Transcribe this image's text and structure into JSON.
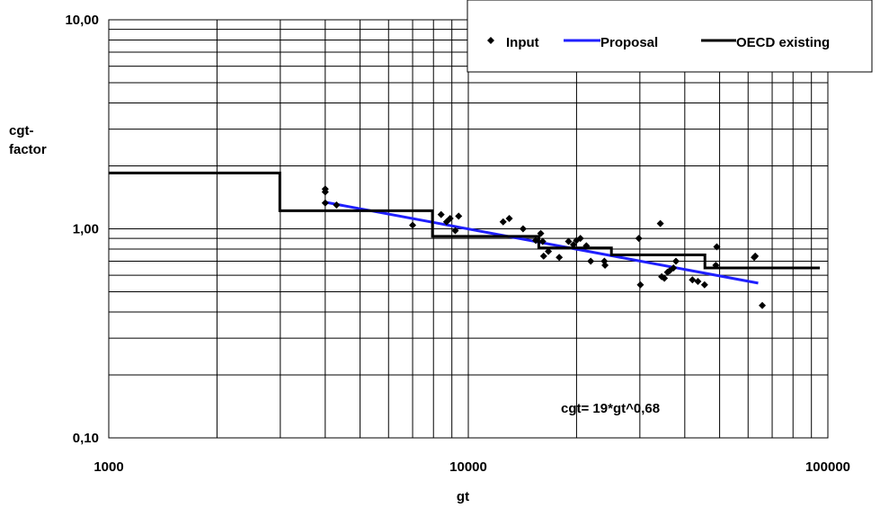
{
  "chart_data": {
    "type": "scatter",
    "xlabel": "gt",
    "ylabel": [
      "cgt-",
      "factor"
    ],
    "x_scale": "log",
    "y_scale": "log",
    "xlim": [
      1000,
      100000
    ],
    "ylim": [
      0.1,
      10
    ],
    "x_ticks": [
      {
        "value": 1000,
        "label": "1000"
      },
      {
        "value": 10000,
        "label": "10000"
      },
      {
        "value": 100000,
        "label": "100000"
      }
    ],
    "y_ticks": [
      {
        "value": 0.1,
        "label": "0,10"
      },
      {
        "value": 1,
        "label": "1,00"
      },
      {
        "value": 10,
        "label": "10,00"
      }
    ],
    "grid": true,
    "legend_position": "top-right",
    "annotation": "cgt= 19*gt^0,68",
    "series": [
      {
        "name": "Input",
        "kind": "markers",
        "marker": "diamond",
        "color": "#000000",
        "points": [
          [
            4000,
            1.55
          ],
          [
            4000,
            1.5
          ],
          [
            4000,
            1.33
          ],
          [
            4300,
            1.3
          ],
          [
            7000,
            1.04
          ],
          [
            8400,
            1.17
          ],
          [
            8700,
            1.08
          ],
          [
            8900,
            1.12
          ],
          [
            9200,
            0.98
          ],
          [
            9400,
            1.15
          ],
          [
            12500,
            1.08
          ],
          [
            13000,
            1.12
          ],
          [
            14200,
            1.0
          ],
          [
            15400,
            0.88
          ],
          [
            15900,
            0.95
          ],
          [
            16100,
            0.87
          ],
          [
            16200,
            0.74
          ],
          [
            16700,
            0.78
          ],
          [
            17900,
            0.73
          ],
          [
            19000,
            0.87
          ],
          [
            19600,
            0.84
          ],
          [
            20000,
            0.88
          ],
          [
            20500,
            0.9
          ],
          [
            21300,
            0.83
          ],
          [
            21900,
            0.7
          ],
          [
            23900,
            0.7
          ],
          [
            24000,
            0.67
          ],
          [
            29800,
            0.9
          ],
          [
            30100,
            0.54
          ],
          [
            34200,
            1.06
          ],
          [
            34500,
            0.59
          ],
          [
            35100,
            0.58
          ],
          [
            35800,
            0.62
          ],
          [
            36300,
            0.63
          ],
          [
            37200,
            0.65
          ],
          [
            37800,
            0.7
          ],
          [
            42000,
            0.57
          ],
          [
            43500,
            0.56
          ],
          [
            45400,
            0.54
          ],
          [
            48800,
            0.67
          ],
          [
            49100,
            0.82
          ],
          [
            62400,
            0.73
          ],
          [
            62800,
            0.74
          ],
          [
            65700,
            0.43
          ]
        ]
      },
      {
        "name": "Proposal",
        "kind": "line",
        "color": "#1f1fff",
        "points": [
          [
            4000,
            1.34
          ],
          [
            64000,
            0.55
          ]
        ]
      },
      {
        "name": "OECD existing",
        "kind": "step",
        "color": "#000000",
        "points": [
          [
            1000,
            1.85
          ],
          [
            2990,
            1.85
          ],
          [
            2990,
            1.22
          ],
          [
            7950,
            1.22
          ],
          [
            7950,
            0.92
          ],
          [
            15700,
            0.92
          ],
          [
            15700,
            0.81
          ],
          [
            25000,
            0.81
          ],
          [
            25000,
            0.75
          ],
          [
            45500,
            0.75
          ],
          [
            45500,
            0.65
          ],
          [
            95000,
            0.65
          ]
        ]
      }
    ]
  }
}
